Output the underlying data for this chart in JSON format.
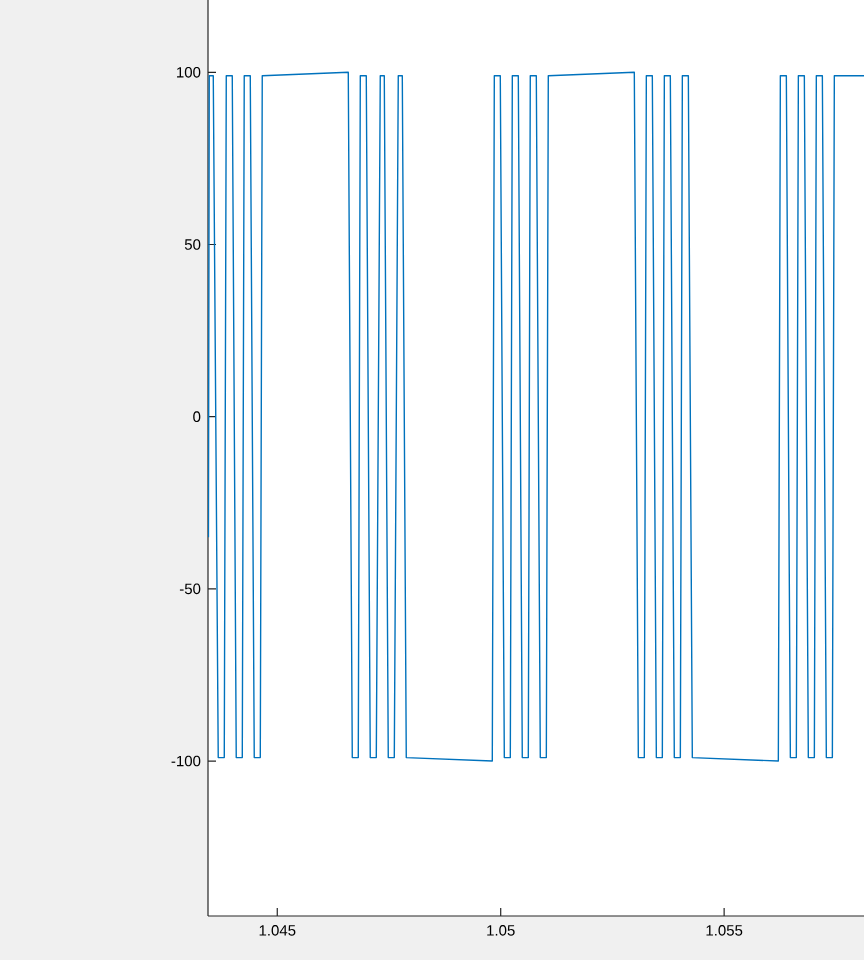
{
  "chart_data": {
    "type": "line",
    "color": "#0072bd",
    "xlim": [
      1.04345,
      1.05813
    ],
    "ylim": [
      -145,
      121
    ],
    "xticks": [
      1.045,
      1.05,
      1.055
    ],
    "yticks": [
      -100,
      -50,
      0,
      50,
      100
    ],
    "x": [
      1.04346,
      1.043478,
      1.043568,
      1.043679,
      1.043814,
      1.043859,
      1.043993,
      1.044082,
      1.044217,
      1.044261,
      1.044396,
      1.044485,
      1.04462,
      1.044664,
      1.046589,
      1.046679,
      1.046813,
      1.046858,
      1.046992,
      1.047081,
      1.047216,
      1.047305,
      1.047395,
      1.047484,
      1.047619,
      1.047708,
      1.047798,
      1.047887,
      1.049812,
      1.049857,
      1.049991,
      1.050081,
      1.050215,
      1.05026,
      1.050394,
      1.050483,
      1.050618,
      1.050662,
      1.050797,
      1.050886,
      1.051021,
      1.051065,
      1.05299,
      1.05308,
      1.053214,
      1.053259,
      1.053393,
      1.053483,
      1.053617,
      1.053662,
      1.053796,
      1.053885,
      1.05402,
      1.054065,
      1.054199,
      1.054288,
      1.056213,
      1.056258,
      1.056392,
      1.056482,
      1.056616,
      1.056661,
      1.056795,
      1.056884,
      1.057019,
      1.057063,
      1.057198,
      1.057287,
      1.057422,
      1.057466,
      1.05813
    ],
    "values": [
      -35,
      99,
      99,
      -99,
      -99,
      99,
      99,
      -99,
      -99,
      99,
      99,
      -99,
      -99,
      99,
      100,
      -99,
      -99,
      99,
      99,
      -99,
      -99,
      99,
      99,
      -99,
      -99,
      99,
      99,
      -99,
      -100,
      99,
      99,
      -99,
      -99,
      99,
      99,
      -99,
      -99,
      99,
      99,
      -99,
      -99,
      99,
      100,
      -99,
      -99,
      99,
      99,
      -99,
      -99,
      99,
      99,
      -99,
      -99,
      99,
      99,
      -99,
      -100,
      99,
      99,
      -99,
      -99,
      99,
      99,
      -99,
      -99,
      99,
      99,
      -99,
      -99,
      99,
      99
    ]
  }
}
